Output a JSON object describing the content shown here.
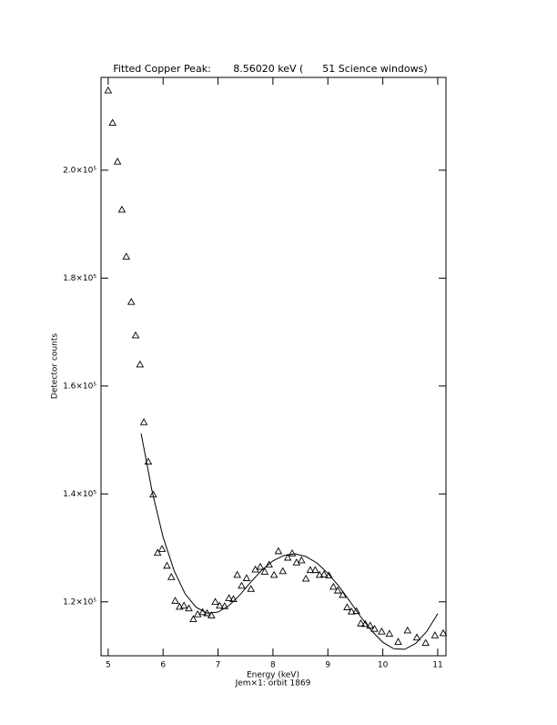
{
  "chart_data": {
    "type": "scatter",
    "title": "Fitted Copper Peak:       8.56020 keV (      51 Science windows)",
    "xlabel": "Energy (keV)",
    "subtitle": "Jem×1: orbit 1869",
    "ylabel": "Detector counts",
    "color": "#000000",
    "xlim": [
      4.87,
      11.15
    ],
    "ylim": [
      110000,
      217200
    ],
    "xticks": [
      5,
      6,
      7,
      8,
      9,
      10,
      11
    ],
    "yticks": [
      {
        "value": 120000,
        "label": "1.2×10⁵"
      },
      {
        "value": 140000,
        "label": "1.4×10⁵"
      },
      {
        "value": 160000,
        "label": "1.6×10⁵"
      },
      {
        "value": 180000,
        "label": "1.8×10⁵"
      },
      {
        "value": 200000,
        "label": "2.0×10⁵"
      }
    ],
    "x": [
      5.0,
      5.08,
      5.17,
      5.25,
      5.33,
      5.42,
      5.5,
      5.58,
      5.65,
      5.73,
      5.82,
      5.9,
      5.98,
      6.07,
      6.15,
      6.22,
      6.3,
      6.38,
      6.47,
      6.55,
      6.63,
      6.72,
      6.8,
      6.88,
      6.95,
      7.03,
      7.12,
      7.2,
      7.28,
      7.35,
      7.43,
      7.52,
      7.6,
      7.68,
      7.77,
      7.85,
      7.93,
      8.02,
      8.1,
      8.18,
      8.27,
      8.35,
      8.43,
      8.52,
      8.6,
      8.68,
      8.77,
      8.85,
      8.93,
      9.02,
      9.1,
      9.18,
      9.27,
      9.35,
      9.43,
      9.52,
      9.6,
      9.68,
      9.77,
      9.85,
      9.98,
      10.12,
      10.28,
      10.45,
      10.62,
      10.78,
      10.95,
      11.1
    ],
    "values": [
      214800,
      208800,
      201600,
      192700,
      184000,
      175600,
      169400,
      164000,
      153300,
      146000,
      139900,
      129100,
      129800,
      126700,
      124600,
      120200,
      119100,
      119300,
      118800,
      116800,
      117700,
      118100,
      117900,
      117500,
      120000,
      119300,
      119200,
      120700,
      120500,
      125000,
      123000,
      124400,
      122400,
      126000,
      126500,
      125600,
      126900,
      125000,
      129400,
      125700,
      128200,
      129000,
      127300,
      127700,
      124300,
      125900,
      125900,
      125000,
      125100,
      124900,
      122800,
      122100,
      121300,
      119000,
      118200,
      118300,
      116000,
      115900,
      115600,
      115000,
      114500,
      114100,
      112600,
      114700,
      113400,
      112400,
      113800,
      114200
    ],
    "fit_x": [
      5.6,
      5.8,
      6.0,
      6.2,
      6.4,
      6.6,
      6.8,
      7.0,
      7.2,
      7.4,
      7.6,
      7.8,
      8.0,
      8.2,
      8.4,
      8.6,
      8.8,
      9.0,
      9.2,
      9.4,
      9.6,
      9.8,
      10.0,
      10.2,
      10.4,
      10.6,
      10.8,
      11.0
    ],
    "fit_values": [
      151200,
      140500,
      132000,
      125800,
      121500,
      119000,
      117900,
      118100,
      119300,
      121300,
      123700,
      125900,
      127600,
      128600,
      128900,
      128400,
      127200,
      125300,
      122900,
      120100,
      117200,
      114600,
      112500,
      111300,
      111200,
      112300,
      114500,
      117800
    ]
  }
}
